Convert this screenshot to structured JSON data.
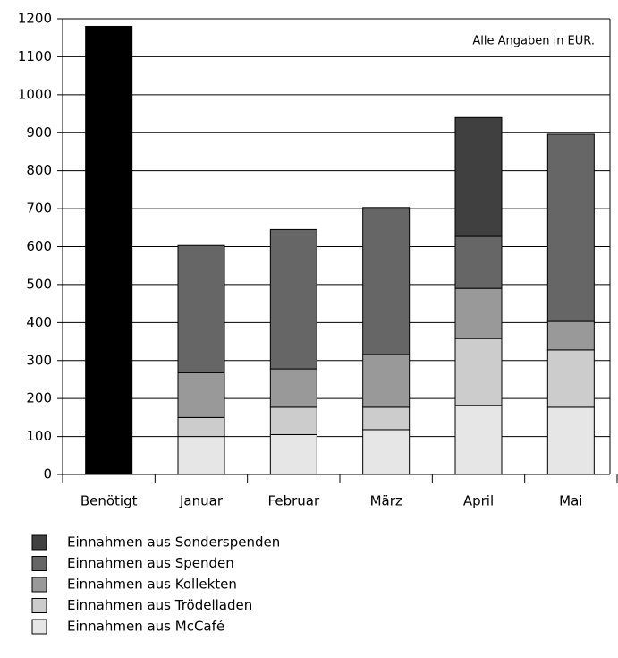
{
  "chart_data": {
    "type": "stacked_bar",
    "annotation": "Alle Angaben in EUR.",
    "categories": [
      "Benötigt",
      "Januar",
      "Februar",
      "März",
      "April",
      "Mai"
    ],
    "series": [
      {
        "color": "#000000",
        "values": [
          1180,
          null,
          null,
          null,
          null,
          null
        ]
      },
      {
        "name": "Einnahmen aus McCafé",
        "color": "#e6e6e6",
        "values": [
          null,
          100,
          105,
          118,
          182,
          177
        ]
      },
      {
        "name": "Einnahmen aus Trödelladen",
        "color": "#cccccc",
        "values": [
          null,
          50,
          72,
          59,
          176,
          151
        ]
      },
      {
        "name": "Einnahmen aus Kollekten",
        "color": "#999999",
        "values": [
          null,
          118,
          101,
          139,
          132,
          75
        ]
      },
      {
        "name": "Einnahmen aus Spenden",
        "color": "#666666",
        "values": [
          null,
          335,
          367,
          387,
          137,
          493
        ]
      },
      {
        "name": "Einnahmen aus Sonderspenden",
        "color": "#404040",
        "values": [
          null,
          null,
          null,
          null,
          313,
          null
        ]
      }
    ],
    "ylim": [
      0,
      1200
    ],
    "yticks": [
      0,
      100,
      200,
      300,
      400,
      500,
      600,
      700,
      800,
      900,
      1000,
      1100,
      1200
    ],
    "grid": true
  }
}
